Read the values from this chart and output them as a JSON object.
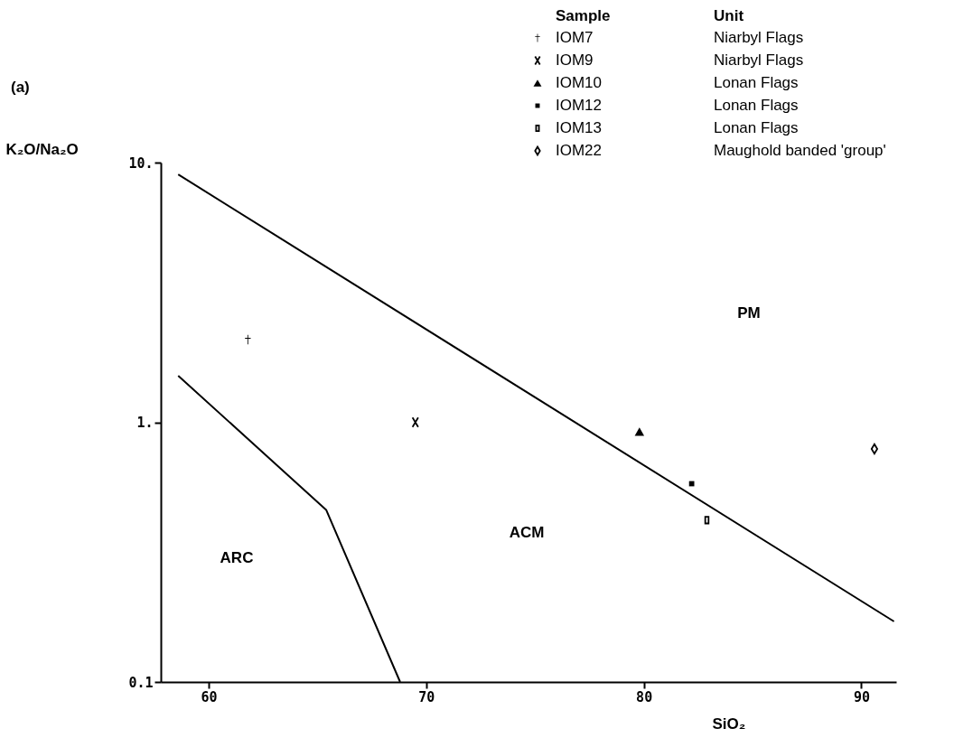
{
  "chart_data": {
    "type": "scatter",
    "title": "(a)",
    "xlabel": "SiO₂",
    "ylabel": "K₂O/Na₂O",
    "legend_title": "Sample",
    "xlim": [
      57.8,
      91.6
    ],
    "xticks": [
      60,
      70,
      80,
      90
    ],
    "ylim": [
      0.1,
      10
    ],
    "yticks": [
      {
        "value": 0.1,
        "label": "0.1"
      },
      {
        "value": 1,
        "label": "1."
      },
      {
        "value": 10,
        "label": "10."
      }
    ],
    "log": "y",
    "grid": false,
    "legend": "top right",
    "series": [
      {
        "name": "IOM7",
        "color": "#000000",
        "marker": "cross",
        "x": [
          61.8
        ],
        "values": [
          2.08
        ]
      },
      {
        "name": "IOM9",
        "color": "#000000",
        "marker": "x",
        "x": [
          69.5
        ],
        "values": [
          1.0
        ]
      },
      {
        "name": "IOM10",
        "color": "#000000",
        "marker": "triangle",
        "x": [
          79.8
        ],
        "values": [
          0.92
        ]
      },
      {
        "name": "IOM12",
        "color": "#000000",
        "marker": "square",
        "x": [
          82.2
        ],
        "values": [
          0.58
        ]
      },
      {
        "name": "IOM13",
        "color": "#000000",
        "marker": "square",
        "x": [
          82.9
        ],
        "values": [
          0.42
        ]
      },
      {
        "name": "IOM22",
        "color": "#000000",
        "marker": "diamond",
        "x": [
          90.6
        ],
        "values": [
          0.79
        ]
      },
      {
        "type": "line",
        "color": "#000000",
        "line_style": "solid",
        "x": [
          58.6,
          91.5
        ],
        "values": [
          9.0,
          0.171
        ]
      },
      {
        "type": "line",
        "color": "#000000",
        "line_style": "solid",
        "x": [
          58.6,
          65.4,
          68.8
        ],
        "values": [
          1.51,
          0.46,
          0.1
        ]
      }
    ],
    "annotations": [
      "Unit",
      "Niarbyl Flags",
      "Niarbyl Flags",
      "Lonan Flags",
      "Lonan Flags",
      "Lonan Flags",
      "Maughold banded 'group'",
      "PM",
      "ACM",
      "ARC"
    ]
  }
}
